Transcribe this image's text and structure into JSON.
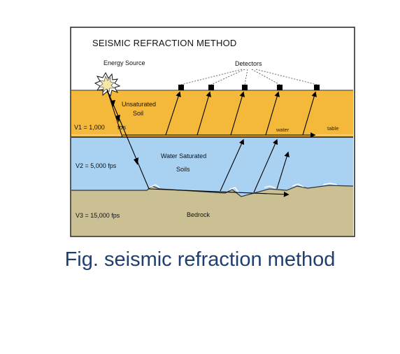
{
  "diagram": {
    "title": "SEISMIC REFRACTION METHOD",
    "energy_source_label": "Energy Source",
    "detectors_label": "Detectors",
    "layers": {
      "unsaturated": {
        "name_line1": "Unsaturated",
        "name_line2": "Soil",
        "velocity": "V1 = 1,000",
        "velocity_unit": "fps",
        "color": "#f4b93a"
      },
      "saturated": {
        "name_line1": "Water Saturated",
        "name_line2": "Soils",
        "velocity": "V2 = 5,000 fps",
        "color": "#a9d1f2"
      },
      "bedrock": {
        "name": "Bedrock",
        "velocity": "V3 = 15,000 fps",
        "color": "#cbbf94"
      }
    },
    "water_table_label_1": "water",
    "water_table_label_2": "table"
  },
  "caption": "Fig. seismic refraction method"
}
